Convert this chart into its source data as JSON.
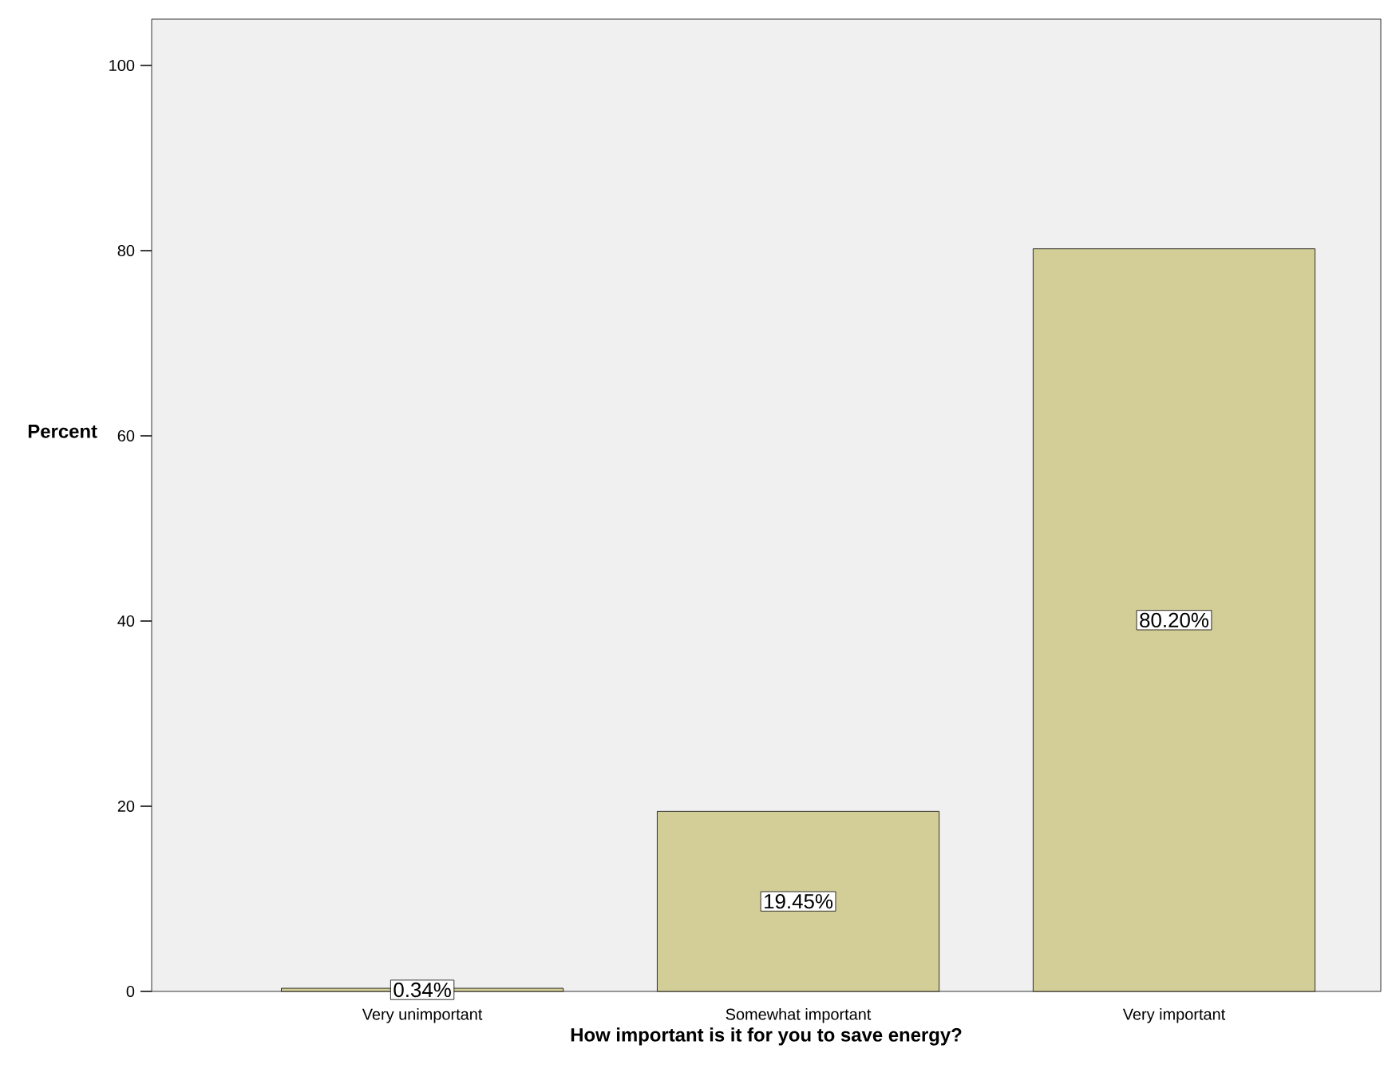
{
  "chart_data": {
    "type": "bar",
    "xlabel": "How important is it for you to save energy?",
    "ylabel": "Percent",
    "categories": [
      "Very unimportant",
      "Somewhat important",
      "Very important"
    ],
    "values": [
      0.34,
      19.45,
      80.2
    ],
    "value_labels": [
      "0.34%",
      "19.45%",
      "80.20%"
    ],
    "color": "#d3ce97",
    "ylim": [
      0,
      105
    ],
    "yticks": [
      0,
      20,
      40,
      60,
      80,
      100
    ],
    "grid": false
  }
}
